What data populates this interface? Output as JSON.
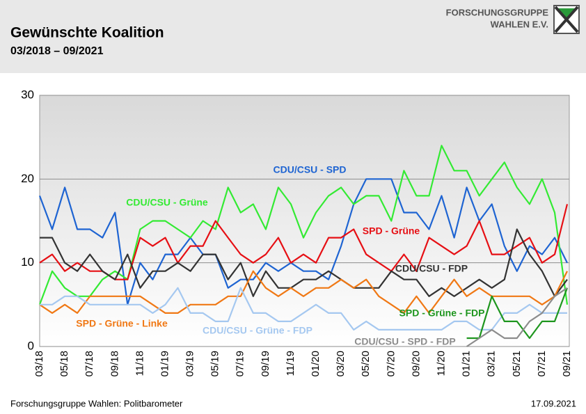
{
  "header": {
    "logo_line1": "FORSCHUNGSGRUPPE",
    "logo_line2": "WAHLEN E.V."
  },
  "chart_data": {
    "type": "line",
    "title": "Gewünschte Koalition",
    "subtitle": "03/2018 – 09/2021",
    "categories": [
      "03/18",
      null,
      "05/18",
      null,
      "07/18",
      null,
      "09/18",
      null,
      "11/18",
      null,
      "01/19",
      null,
      "03/19",
      null,
      "05/19",
      null,
      "07/19",
      null,
      "09/19",
      null,
      "11/19",
      null,
      "01/20",
      null,
      "03/20",
      null,
      "05/20",
      null,
      "07/20",
      null,
      "09/20",
      null,
      "11/20",
      null,
      "01/21",
      null,
      "03/21",
      null,
      "05/21",
      null,
      "07/21",
      null,
      "09/21"
    ],
    "ylim": [
      0,
      30
    ],
    "yticks": [
      0,
      10,
      20,
      30
    ],
    "grid": true,
    "series": [
      {
        "name": "CDU/CSU - SPD",
        "color": "#1e64d2",
        "values": [
          18,
          14,
          19,
          14,
          14,
          13,
          16,
          5,
          10,
          8,
          11,
          11,
          13,
          11,
          11,
          7,
          8,
          8,
          10,
          9,
          10,
          9,
          9,
          8,
          12,
          17,
          20,
          20,
          20,
          16,
          16,
          14,
          18,
          13,
          19,
          15,
          17,
          12,
          9,
          12,
          11,
          13,
          10
        ]
      },
      {
        "name": "CDU/CSU - Grüne",
        "color": "#33ea33",
        "values": [
          5,
          9,
          7,
          6,
          6,
          8,
          9,
          8,
          14,
          15,
          15,
          14,
          13,
          15,
          14,
          19,
          16,
          17,
          14,
          19,
          17,
          13,
          16,
          18,
          19,
          17,
          18,
          18,
          15,
          21,
          18,
          18,
          24,
          21,
          21,
          18,
          20,
          22,
          19,
          17,
          20,
          16,
          5
        ]
      },
      {
        "name": "SPD - Grüne",
        "color": "#e60f14",
        "values": [
          10,
          11,
          9,
          10,
          9,
          9,
          8,
          8,
          13,
          12,
          13,
          10,
          12,
          12,
          15,
          13,
          11,
          10,
          11,
          13,
          10,
          11,
          10,
          13,
          13,
          14,
          11,
          10,
          9,
          11,
          9,
          13,
          12,
          11,
          12,
          15,
          11,
          11,
          12,
          13,
          10,
          11,
          17
        ]
      },
      {
        "name": "CDU/CSU - FDP",
        "color": "#333333",
        "values": [
          13,
          13,
          10,
          9,
          11,
          9,
          8,
          11,
          7,
          9,
          9,
          10,
          9,
          11,
          11,
          8,
          10,
          6,
          9,
          7,
          7,
          8,
          8,
          9,
          8,
          7,
          7,
          7,
          9,
          8,
          8,
          6,
          7,
          6,
          7,
          8,
          7,
          8,
          14,
          11,
          9,
          6,
          8
        ]
      },
      {
        "name": "SPD - Grüne - Linke",
        "color": "#f07814",
        "values": [
          5,
          4,
          5,
          4,
          6,
          6,
          6,
          6,
          6,
          5,
          4,
          4,
          5,
          5,
          5,
          6,
          6,
          9,
          7,
          6,
          7,
          6,
          7,
          7,
          8,
          7,
          8,
          6,
          5,
          4,
          6,
          4,
          6,
          8,
          6,
          7,
          6,
          6,
          6,
          6,
          5,
          6,
          9
        ]
      },
      {
        "name": "CDU/CSU - Grüne - FDP",
        "color": "#a5c8f0",
        "values": [
          5,
          5,
          6,
          6,
          5,
          5,
          5,
          5,
          5,
          4,
          5,
          7,
          4,
          4,
          3,
          3,
          7,
          4,
          4,
          3,
          3,
          4,
          5,
          4,
          4,
          2,
          3,
          2,
          2,
          2,
          2,
          2,
          2,
          3,
          3,
          2,
          2,
          4,
          4,
          5,
          4,
          4,
          4
        ]
      },
      {
        "name": "SPD - Grüne - FDP",
        "color": "#1e961e",
        "values": [
          null,
          null,
          null,
          null,
          null,
          null,
          null,
          null,
          null,
          null,
          null,
          null,
          null,
          null,
          null,
          null,
          null,
          null,
          null,
          null,
          null,
          null,
          null,
          null,
          null,
          null,
          null,
          null,
          null,
          null,
          null,
          null,
          null,
          null,
          1,
          1,
          6,
          3,
          3,
          1,
          3,
          3,
          7
        ]
      },
      {
        "name": "CDU/CSU - SPD - FDP",
        "color": "#8c8c8c",
        "values": [
          null,
          null,
          null,
          null,
          null,
          null,
          null,
          null,
          null,
          null,
          null,
          null,
          null,
          null,
          null,
          null,
          null,
          null,
          null,
          null,
          null,
          null,
          null,
          null,
          null,
          null,
          null,
          null,
          null,
          null,
          null,
          null,
          null,
          null,
          0,
          1,
          2,
          1,
          1,
          3,
          4,
          6,
          7
        ]
      }
    ],
    "source": "Forschungsgruppe Wahlen: Politbarometer",
    "date": "17.09.2021"
  }
}
